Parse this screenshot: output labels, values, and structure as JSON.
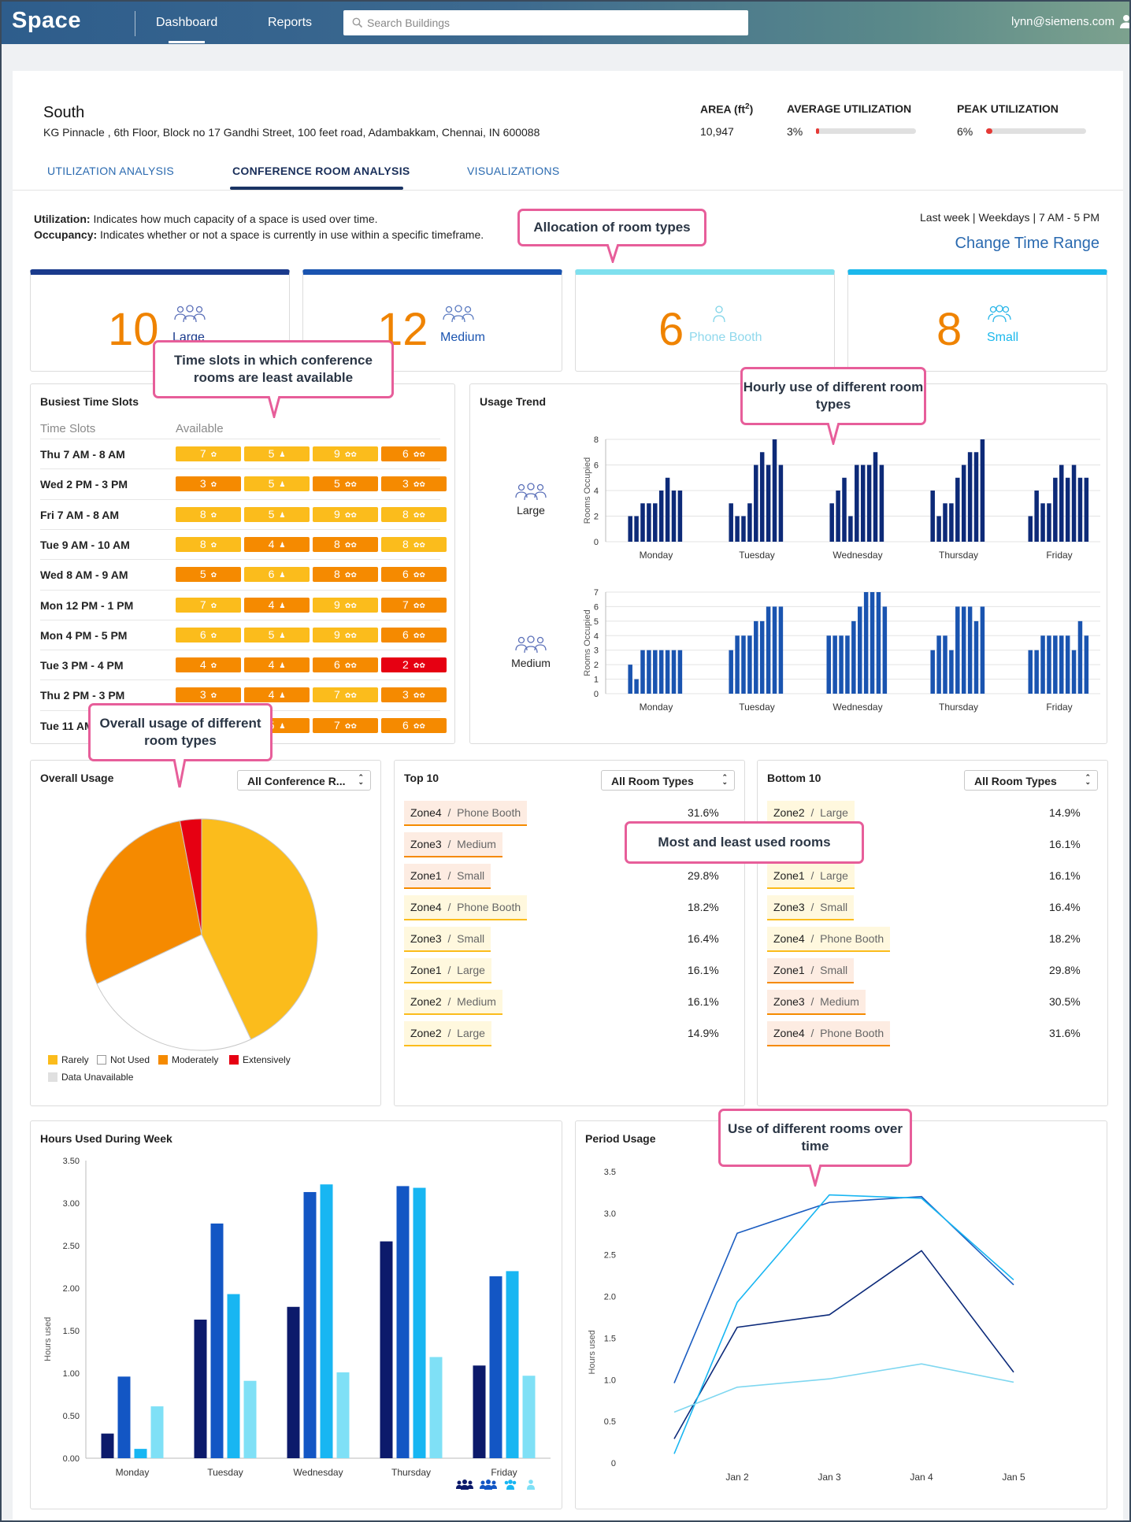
{
  "app": {
    "name": "Space",
    "user": "lynn@siemens.com"
  },
  "nav": [
    {
      "label": "Dashboard",
      "active": true
    },
    {
      "label": "Reports",
      "active": false
    }
  ],
  "search": {
    "placeholder": "Search Buildings"
  },
  "building": {
    "name": "South",
    "address": "KG Pinnacle , 6th Floor, Block no 17 Gandhi Street, 100 feet road, Adambakkam, Chennai, IN 600088",
    "area_label": "AREA (ft2)",
    "area_value": "10,947",
    "avg_label": "AVERAGE UTILIZATION",
    "avg_value": "3%",
    "avg_fraction": 0.03,
    "peak_label": "PEAK UTILIZATION",
    "peak_value": "6%",
    "peak_fraction": 0.06
  },
  "tabs": [
    {
      "label": "UTILIZATION ANALYSIS",
      "active": false
    },
    {
      "label": "CONFERENCE ROOM ANALYSIS",
      "active": true
    },
    {
      "label": "VISUALIZATIONS",
      "active": false
    }
  ],
  "definitions": {
    "util_term": "Utilization:",
    "util_text": "Indicates how much capacity of a space is used over time.",
    "occ_term": "Occupancy:",
    "occ_text": "Indicates whether or not a space is currently in use within a specific timeframe."
  },
  "time_range": {
    "text": "Last week | Weekdays | 7 AM - 5 PM",
    "link": "Change Time Range"
  },
  "callouts": {
    "allocation": "Allocation of room types",
    "timeslots": "Time slots in which conference rooms are least available",
    "hourly": "Hourly use of different room types",
    "overall": "Overall usage of different room types",
    "mostleast": "Most and least used rooms",
    "period": "Use of different rooms over time"
  },
  "room_types": [
    {
      "count": "10",
      "label": "Large",
      "color": "#1a3a8c",
      "label_color": "#1a3a8c"
    },
    {
      "count": "12",
      "label": "Medium",
      "color": "#1a54b0",
      "label_color": "#1a54b0"
    },
    {
      "count": "6",
      "label": "Phone Booth",
      "color": "#7fe0ee",
      "label_color": "#8fd8ec"
    },
    {
      "count": "8",
      "label": "Small",
      "color": "#1bb8ec",
      "label_color": "#1bb8ec"
    }
  ],
  "busiest": {
    "title": "Busiest Time Slots",
    "col1": "Time Slots",
    "col2": "Available",
    "rows": [
      {
        "slot": "Thu 7 AM - 8 AM",
        "cells": [
          [
            "7",
            "#fbbc1c"
          ],
          [
            "5",
            "#fbbc1c"
          ],
          [
            "9",
            "#fbbc1c"
          ],
          [
            "6",
            "#f58a00"
          ]
        ]
      },
      {
        "slot": "Wed 2 PM - 3 PM",
        "cells": [
          [
            "3",
            "#f58a00"
          ],
          [
            "5",
            "#fbbc1c"
          ],
          [
            "5",
            "#f58a00"
          ],
          [
            "3",
            "#f58a00"
          ]
        ]
      },
      {
        "slot": "Fri 7 AM - 8 AM",
        "cells": [
          [
            "8",
            "#fbbc1c"
          ],
          [
            "5",
            "#fbbc1c"
          ],
          [
            "9",
            "#fbbc1c"
          ],
          [
            "8",
            "#fbbc1c"
          ]
        ]
      },
      {
        "slot": "Tue 9 AM - 10 AM",
        "cells": [
          [
            "8",
            "#fbbc1c"
          ],
          [
            "4",
            "#f58a00"
          ],
          [
            "8",
            "#f58a00"
          ],
          [
            "8",
            "#fbbc1c"
          ]
        ]
      },
      {
        "slot": "Wed 8 AM - 9 AM",
        "cells": [
          [
            "5",
            "#f58a00"
          ],
          [
            "6",
            "#fbbc1c"
          ],
          [
            "8",
            "#f58a00"
          ],
          [
            "6",
            "#f58a00"
          ]
        ]
      },
      {
        "slot": "Mon 12 PM - 1 PM",
        "cells": [
          [
            "7",
            "#fbbc1c"
          ],
          [
            "4",
            "#f58a00"
          ],
          [
            "9",
            "#fbbc1c"
          ],
          [
            "7",
            "#f58a00"
          ]
        ]
      },
      {
        "slot": "Mon 4 PM - 5 PM",
        "cells": [
          [
            "6",
            "#fbbc1c"
          ],
          [
            "5",
            "#fbbc1c"
          ],
          [
            "9",
            "#fbbc1c"
          ],
          [
            "6",
            "#f58a00"
          ]
        ]
      },
      {
        "slot": "Tue 3 PM - 4 PM",
        "cells": [
          [
            "4",
            "#f58a00"
          ],
          [
            "4",
            "#f58a00"
          ],
          [
            "6",
            "#f58a00"
          ],
          [
            "2",
            "#e60012"
          ]
        ]
      },
      {
        "slot": "Thu 2 PM - 3 PM",
        "cells": [
          [
            "3",
            "#f58a00"
          ],
          [
            "4",
            "#f58a00"
          ],
          [
            "7",
            "#fbbc1c"
          ],
          [
            "3",
            "#f58a00"
          ]
        ]
      },
      {
        "slot": "Tue 11 AM - 12 PM",
        "cells": [
          [
            "3",
            "#f58a00"
          ],
          [
            "5",
            "#f58a00"
          ],
          [
            "7",
            "#f58a00"
          ],
          [
            "6",
            "#f58a00"
          ]
        ]
      }
    ]
  },
  "usage_trend": {
    "title": "Usage Trend",
    "ylabel": "Rooms Occupied",
    "days": [
      "Monday",
      "Tuesday",
      "Wednesday",
      "Thursday",
      "Friday"
    ],
    "charts": [
      {
        "label": "Large",
        "ymax": 8,
        "ticks": [
          0,
          2,
          4,
          6,
          8
        ],
        "color": "#0d2a78",
        "values": [
          [
            2,
            2,
            3,
            3,
            3,
            4,
            5,
            4,
            4
          ],
          [
            3,
            2,
            2,
            3,
            6,
            7,
            6,
            8,
            6
          ],
          [
            3,
            4,
            5,
            2,
            6,
            6,
            6,
            7,
            6
          ],
          [
            4,
            2,
            3,
            3,
            5,
            6,
            7,
            7,
            8
          ],
          [
            2,
            4,
            3,
            3,
            5,
            6,
            5,
            6,
            5,
            5
          ]
        ]
      },
      {
        "label": "Medium",
        "ymax": 7,
        "ticks": [
          0,
          1,
          2,
          3,
          4,
          5,
          6,
          7
        ],
        "color": "#1a54b0",
        "values": [
          [
            2,
            1,
            3,
            3,
            3,
            3,
            3,
            3,
            3
          ],
          [
            3,
            4,
            4,
            4,
            5,
            5,
            6,
            6,
            6
          ],
          [
            4,
            4,
            4,
            4,
            5,
            6,
            7,
            7,
            7,
            6
          ],
          [
            3,
            4,
            4,
            3,
            6,
            6,
            6,
            5,
            6
          ],
          [
            3,
            3,
            4,
            4,
            4,
            4,
            4,
            3,
            5,
            4
          ]
        ]
      }
    ]
  },
  "overall_usage": {
    "title": "Overall Usage",
    "dropdown": "All Conference R...",
    "legend": [
      {
        "label": "Rarely",
        "color": "#fbbc1c"
      },
      {
        "label": "Not Used",
        "color": "#ffffff"
      },
      {
        "label": "Moderately",
        "color": "#f58a00"
      },
      {
        "label": "Extensively",
        "color": "#e60012"
      },
      {
        "label": "Data Unavailable",
        "color": "#e0e0e0"
      }
    ]
  },
  "top10": {
    "title": "Top 10",
    "dropdown": "All Room Types",
    "rows": [
      {
        "zone": "Zone4",
        "room": "Phone Booth",
        "pct": "31.6%",
        "bg": "#fdece2",
        "line": "#f58a00"
      },
      {
        "zone": "Zone3",
        "room": "Medium",
        "pct": "",
        "bg": "#fdece2",
        "line": "#f58a00"
      },
      {
        "zone": "Zone1",
        "room": "Small",
        "pct": "29.8%",
        "bg": "#fdece2",
        "line": "#f58a00"
      },
      {
        "zone": "Zone4",
        "room": "Phone Booth",
        "pct": "18.2%",
        "bg": "#fff8de",
        "line": "#fbbc1c"
      },
      {
        "zone": "Zone3",
        "room": "Small",
        "pct": "16.4%",
        "bg": "#fff8de",
        "line": "#fbbc1c"
      },
      {
        "zone": "Zone1",
        "room": "Large",
        "pct": "16.1%",
        "bg": "#fff8de",
        "line": "#fbbc1c"
      },
      {
        "zone": "Zone2",
        "room": "Medium",
        "pct": "16.1%",
        "bg": "#fff8de",
        "line": "#fbbc1c"
      },
      {
        "zone": "Zone2",
        "room": "Large",
        "pct": "14.9%",
        "bg": "#fff8de",
        "line": "#fbbc1c"
      }
    ]
  },
  "bottom10": {
    "title": "Bottom 10",
    "dropdown": "All Room Types",
    "rows": [
      {
        "zone": "Zone2",
        "room": "Large",
        "pct": "14.9%",
        "bg": "#fff8de",
        "line": "#fbbc1c"
      },
      {
        "zone": "",
        "room": "",
        "pct": "16.1%",
        "bg": "transparent",
        "line": "transparent"
      },
      {
        "zone": "Zone1",
        "room": "Large",
        "pct": "16.1%",
        "bg": "#fff8de",
        "line": "#fbbc1c"
      },
      {
        "zone": "Zone3",
        "room": "Small",
        "pct": "16.4%",
        "bg": "#fff8de",
        "line": "#fbbc1c"
      },
      {
        "zone": "Zone4",
        "room": "Phone Booth",
        "pct": "18.2%",
        "bg": "#fff8de",
        "line": "#fbbc1c"
      },
      {
        "zone": "Zone1",
        "room": "Small",
        "pct": "29.8%",
        "bg": "#fdece2",
        "line": "#f58a00"
      },
      {
        "zone": "Zone3",
        "room": "Medium",
        "pct": "30.5%",
        "bg": "#fdece2",
        "line": "#f58a00"
      },
      {
        "zone": "Zone4",
        "room": "Phone Booth",
        "pct": "31.6%",
        "bg": "#fdece2",
        "line": "#f58a00"
      }
    ]
  },
  "chart_data": [
    {
      "type": "pie",
      "title": "Overall Usage",
      "categories": [
        "Rarely",
        "Not Used",
        "Moderately",
        "Extensively"
      ],
      "values": [
        43,
        25,
        29,
        3
      ],
      "colors": [
        "#fbbc1c",
        "#ffffff",
        "#f58a00",
        "#e60012"
      ]
    },
    {
      "type": "bar",
      "title": "Hours Used During Week",
      "ylabel": "Hours used",
      "ylim": [
        0,
        3.5
      ],
      "yticks": [
        "0.00",
        "0.50",
        "1.00",
        "1.50",
        "2.00",
        "2.50",
        "3.00",
        "3.50"
      ],
      "categories": [
        "Monday",
        "Tuesday",
        "Wednesday",
        "Thursday",
        "Friday"
      ],
      "series": [
        {
          "values": [
            0.29,
            1.63,
            1.78,
            2.55,
            1.09
          ],
          "color": "#0c1a6b"
        },
        {
          "values": [
            0.96,
            2.76,
            3.13,
            3.2,
            2.14
          ],
          "color": "#1356c4"
        },
        {
          "values": [
            0.11,
            1.93,
            3.22,
            3.18,
            2.2
          ],
          "color": "#18b6f2"
        },
        {
          "values": [
            0.61,
            0.91,
            1.01,
            1.19,
            0.97
          ],
          "color": "#7fe0f6"
        }
      ]
    },
    {
      "type": "line",
      "title": "Period Usage",
      "ylabel": "Hours used",
      "ylim": [
        0,
        3.5
      ],
      "yticks": [
        "0",
        "0.5",
        "1.0",
        "1.5",
        "2.0",
        "2.5",
        "3.0",
        "3.5"
      ],
      "x": [
        "Jan 1",
        "Jan 2",
        "Jan 3",
        "Jan 4",
        "Jan 5"
      ],
      "xticks": [
        "Jan 2",
        "Jan 3",
        "Jan 4",
        "Jan 5"
      ],
      "series": [
        {
          "values": [
            0.29,
            1.63,
            1.78,
            2.55,
            1.09
          ],
          "color": "#0c2a7a"
        },
        {
          "values": [
            0.96,
            2.76,
            3.13,
            3.2,
            2.14
          ],
          "color": "#1a5cc0"
        },
        {
          "values": [
            0.11,
            1.93,
            3.22,
            3.18,
            2.2
          ],
          "color": "#18b6f2"
        },
        {
          "values": [
            0.61,
            0.91,
            1.01,
            1.19,
            0.97
          ],
          "color": "#7fd7f0"
        }
      ]
    }
  ],
  "hours_chart": {
    "title": "Hours Used During Week"
  },
  "period_chart": {
    "title": "Period Usage"
  }
}
